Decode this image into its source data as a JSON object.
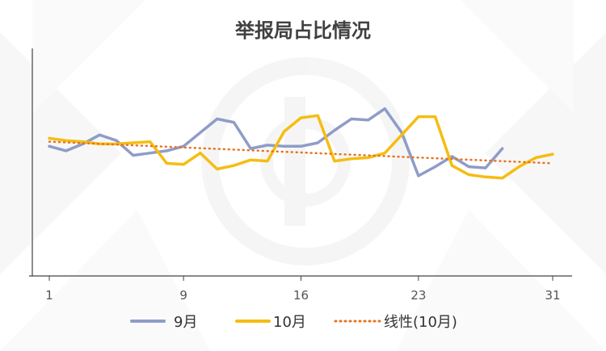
{
  "chart_data": {
    "type": "line",
    "title": "举报局占比情况",
    "xlabel": "",
    "ylabel": "",
    "xlim": [
      1,
      31
    ],
    "ylim": [
      0,
      10
    ],
    "xticks": [
      "1",
      "9",
      "16",
      "23",
      "31"
    ],
    "grid": false,
    "legend_position": "bottom",
    "series": [
      {
        "name": "9月",
        "color": "#8E9CC8",
        "style": "solid",
        "x": [
          1,
          2,
          3,
          4,
          5,
          6,
          7,
          8,
          9,
          10,
          11,
          12,
          13,
          14,
          15,
          16,
          17,
          18,
          19,
          20,
          21,
          22,
          23,
          24,
          25,
          26,
          27,
          28
        ],
        "y": [
          5.7,
          5.5,
          5.8,
          6.2,
          5.95,
          5.3,
          5.4,
          5.5,
          5.7,
          6.3,
          6.9,
          6.75,
          5.6,
          5.75,
          5.7,
          5.7,
          5.85,
          6.4,
          6.9,
          6.85,
          7.35,
          6.3,
          4.4,
          4.8,
          5.25,
          4.8,
          4.75,
          5.6
        ]
      },
      {
        "name": "10月",
        "color": "#F5BD12",
        "style": "solid",
        "x": [
          1,
          2,
          3,
          4,
          5,
          6,
          7,
          8,
          9,
          10,
          11,
          12,
          13,
          14,
          15,
          16,
          17,
          18,
          19,
          20,
          21,
          22,
          23,
          24,
          25,
          26,
          27,
          28,
          29,
          30,
          31
        ],
        "y": [
          6.05,
          5.95,
          5.9,
          5.8,
          5.8,
          5.85,
          5.9,
          4.95,
          4.9,
          5.4,
          4.7,
          4.85,
          5.1,
          5.05,
          6.35,
          6.95,
          7.05,
          5.05,
          5.15,
          5.2,
          5.4,
          6.2,
          7.0,
          7.0,
          4.85,
          4.45,
          4.35,
          4.3,
          4.8,
          5.2,
          5.35
        ]
      },
      {
        "name": "线性(10月)",
        "color": "#E8731C",
        "style": "dotted",
        "x": [
          1,
          31
        ],
        "y": [
          5.9,
          4.95
        ]
      }
    ]
  },
  "legend": {
    "items": [
      {
        "label": "9月",
        "color": "#8E9CC8",
        "style": "solid"
      },
      {
        "label": "10月",
        "color": "#F5BD12",
        "style": "solid"
      },
      {
        "label": "线性(10月)",
        "color": "#E8731C",
        "style": "dotted"
      }
    ]
  }
}
